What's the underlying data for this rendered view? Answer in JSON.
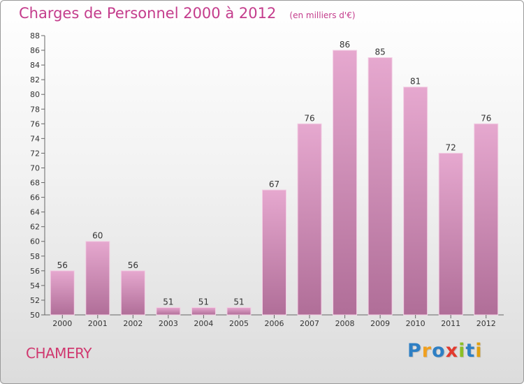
{
  "chart_data": {
    "type": "bar",
    "title": "Charges de Personnel 2000 à 2012",
    "unit": "(en milliers d'€)",
    "xlabel": "",
    "ylabel": "",
    "categories": [
      "2000",
      "2001",
      "2002",
      "2003",
      "2004",
      "2005",
      "2006",
      "2007",
      "2008",
      "2009",
      "2010",
      "2011",
      "2012"
    ],
    "values": [
      56,
      60,
      56,
      51,
      51,
      51,
      67,
      76,
      86,
      85,
      81,
      72,
      76
    ],
    "ylim": [
      50,
      88
    ],
    "yticks": [
      50,
      52,
      54,
      56,
      58,
      60,
      62,
      64,
      66,
      68,
      70,
      72,
      74,
      76,
      78,
      80,
      82,
      84,
      86,
      88
    ],
    "grid": false,
    "bar_color": "#d48ab4"
  },
  "commune": "CHAMERY",
  "brand": {
    "letters": [
      "P",
      "r",
      "o",
      "x",
      "i",
      "t",
      "i"
    ],
    "colors": [
      "#2e7fc4",
      "#f0a020",
      "#2e7fc4",
      "#e23a2e",
      "#8cbf26",
      "#2e7fc4",
      "#e0a010"
    ]
  }
}
